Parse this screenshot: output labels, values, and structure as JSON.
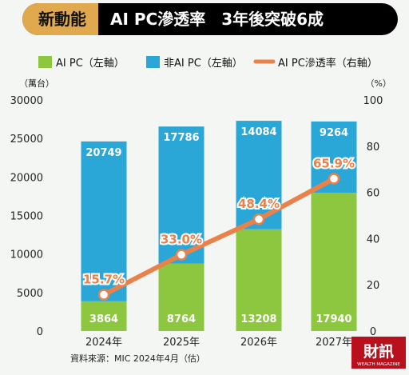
{
  "header": {
    "tag": "新動能",
    "title": "AI PC滲透率　3年後突破6成"
  },
  "legend": [
    {
      "label": "AI PC（左軸）",
      "kind": "box",
      "color": "#8dc63f"
    },
    {
      "label": "非AI PC（左軸）",
      "kind": "box",
      "color": "#2aa7d6"
    },
    {
      "label": "AI PC滲透率（右軸）",
      "kind": "line",
      "color": "#e9824a"
    }
  ],
  "left_unit": "（萬台）",
  "right_unit": "（%）",
  "source": "資料來源：MIC 2024年4月（估）",
  "logo": {
    "main": "財訊",
    "sub": "WEALTH MAGAZINE"
  },
  "colors": {
    "ai_pc": "#8dc63f",
    "non_ai_pc": "#2aa7d6",
    "rate_line": "#e9824a",
    "header_bg": "#000000",
    "tag_bg": "#e1a94e"
  },
  "chart_data": {
    "type": "bar",
    "stacked": true,
    "categories": [
      "2024年",
      "2025年",
      "2026年",
      "2027年"
    ],
    "series": [
      {
        "name": "AI PC（左軸）",
        "axis": "left",
        "values": [
          3864,
          8764,
          13208,
          17940
        ]
      },
      {
        "name": "非AI PC（左軸）",
        "axis": "left",
        "values": [
          20749,
          17786,
          14084,
          9264
        ]
      },
      {
        "name": "AI PC滲透率（右軸）",
        "axis": "right",
        "type": "line",
        "values": [
          15.7,
          33.0,
          48.4,
          65.9
        ],
        "labels": [
          "15.7%",
          "33.0%",
          "48.4%",
          "65.9%"
        ]
      }
    ],
    "ylim_left": [
      0,
      30000
    ],
    "yticks_left": [
      0,
      5000,
      10000,
      15000,
      20000,
      25000,
      30000
    ],
    "ylim_right": [
      0,
      100
    ],
    "yticks_right": [
      0,
      20,
      40,
      60,
      80,
      100
    ],
    "grid": false,
    "legend_position": "top"
  }
}
